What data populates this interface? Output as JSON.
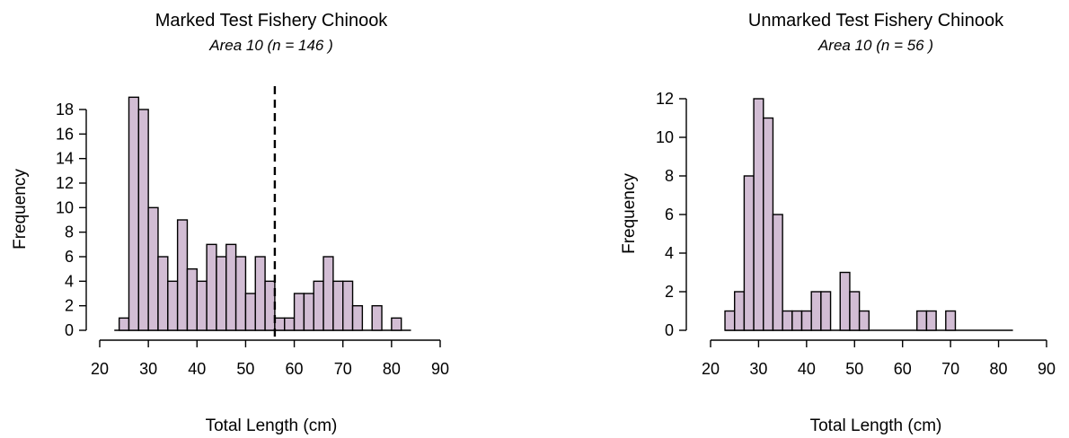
{
  "chart_data": [
    {
      "type": "bar",
      "title": "Marked Test Fishery Chinook",
      "subtitle": "Area 10  (n = 146 )",
      "xlabel": "Total Length (cm)",
      "ylabel": "Frequency",
      "bin_width": 2,
      "x": [
        25,
        27,
        29,
        31,
        33,
        35,
        37,
        39,
        41,
        43,
        45,
        47,
        49,
        51,
        53,
        55,
        57,
        59,
        61,
        63,
        65,
        67,
        69,
        71,
        73,
        75,
        77,
        79,
        81
      ],
      "values": [
        1,
        19,
        18,
        10,
        6,
        4,
        9,
        5,
        4,
        7,
        6,
        7,
        6,
        3,
        6,
        4,
        1,
        1,
        3,
        3,
        4,
        6,
        4,
        4,
        2,
        0,
        2,
        0,
        1
      ],
      "baseline_range": [
        23,
        84
      ],
      "xlim": [
        20,
        90
      ],
      "xticks": [
        20,
        30,
        40,
        50,
        60,
        70,
        80,
        90
      ],
      "ylim": [
        0,
        18
      ],
      "yticks": [
        0,
        2,
        4,
        6,
        8,
        10,
        12,
        14,
        16,
        18
      ],
      "reference_line": {
        "x": 56,
        "style": "dashed"
      },
      "grid": false
    },
    {
      "type": "bar",
      "title": "Unmarked Test Fishery Chinook",
      "subtitle": "Area 10  (n = 56 )",
      "xlabel": "Total Length (cm)",
      "ylabel": "Frequency",
      "bin_width": 2,
      "x": [
        24,
        26,
        28,
        30,
        32,
        34,
        36,
        38,
        40,
        42,
        44,
        46,
        48,
        50,
        52,
        54,
        56,
        58,
        60,
        62,
        64,
        66,
        68,
        70
      ],
      "values": [
        1,
        2,
        8,
        12,
        11,
        6,
        1,
        1,
        1,
        2,
        2,
        0,
        3,
        2,
        1,
        0,
        0,
        0,
        0,
        0,
        1,
        1,
        0,
        1
      ],
      "baseline_range": [
        23,
        83
      ],
      "xlim": [
        20,
        90
      ],
      "xticks": [
        20,
        30,
        40,
        50,
        60,
        70,
        80,
        90
      ],
      "ylim": [
        0,
        12
      ],
      "yticks": [
        0,
        2,
        4,
        6,
        8,
        10,
        12
      ],
      "grid": false
    }
  ]
}
